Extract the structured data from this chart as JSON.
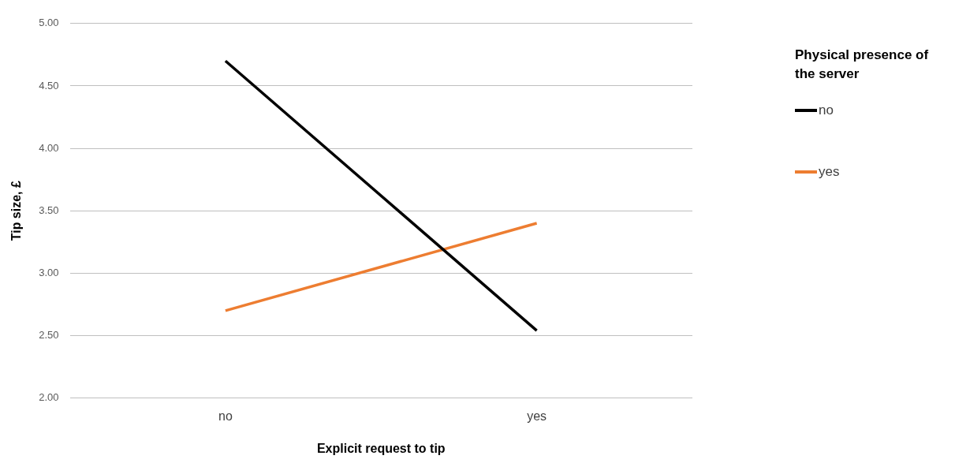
{
  "chart_data": {
    "type": "line",
    "xlabel": "Explicit request to tip",
    "ylabel": "Tip size, £",
    "legend_title": "Physical presence of the server",
    "categories": [
      "no",
      "yes"
    ],
    "series": [
      {
        "name": "no",
        "color": "#000000",
        "values": [
          4.7,
          2.54
        ]
      },
      {
        "name": "yes",
        "color": "#ed7d31",
        "values": [
          2.7,
          3.4
        ]
      }
    ],
    "ylim": [
      2,
      5
    ],
    "yticks": [
      {
        "value": 2,
        "label": "2.00"
      },
      {
        "value": 2.5,
        "label": "2.50"
      },
      {
        "value": 3,
        "label": "3.00"
      },
      {
        "value": 3.5,
        "label": "3.50"
      },
      {
        "value": 4,
        "label": "4.00"
      },
      {
        "value": 4.5,
        "label": "4.50"
      },
      {
        "value": 5,
        "label": "5.00"
      }
    ],
    "grid": "y",
    "legend": "right",
    "marker": "none",
    "line_style": "solid"
  }
}
